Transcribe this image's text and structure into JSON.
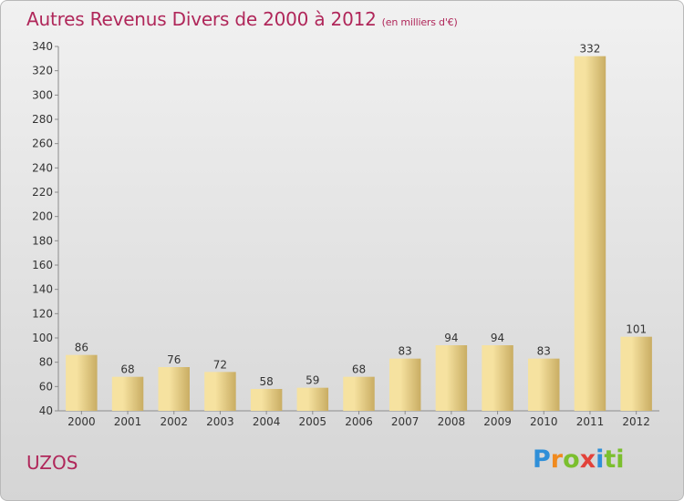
{
  "chart_data": {
    "type": "bar",
    "title": "Autres Revenus Divers de 2000 à 2012",
    "subtitle": "(en milliers d'€)",
    "categories": [
      "2000",
      "2001",
      "2002",
      "2003",
      "2004",
      "2005",
      "2006",
      "2007",
      "2008",
      "2009",
      "2010",
      "2011",
      "2012"
    ],
    "values": [
      86,
      68,
      76,
      72,
      58,
      59,
      68,
      83,
      94,
      94,
      83,
      332,
      101
    ],
    "ylim": [
      40,
      340
    ],
    "yticks": [
      40,
      60,
      80,
      100,
      120,
      140,
      160,
      180,
      200,
      220,
      240,
      260,
      280,
      300,
      320,
      340
    ],
    "grid": false,
    "colors": {
      "bar_light": "#f6e2a0",
      "bar_dark": "#c9ad63",
      "title": "#b0275a"
    }
  },
  "place_label": "UZOS",
  "logo_text": "Proxiti"
}
